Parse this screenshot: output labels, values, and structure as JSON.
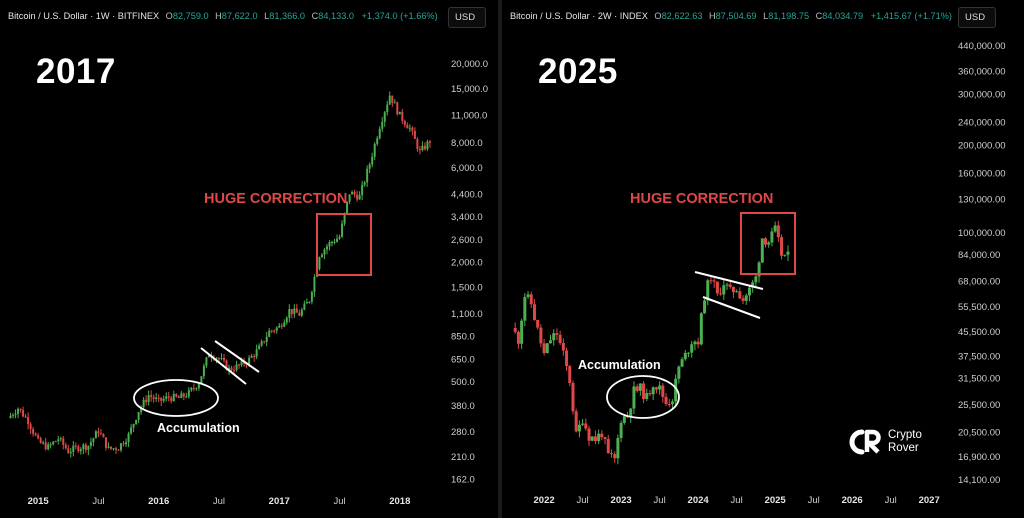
{
  "left": {
    "header": {
      "symbol": "Bitcoin / U.S. Dollar · 1W · BITFINEX",
      "o_label": "O",
      "o": "82,759.0",
      "h_label": "H",
      "h": "87,622.0",
      "l_label": "L",
      "l": "81,366.0",
      "c_label": "C",
      "c": "84,133.0",
      "change": "+1,374.0 (+1.66%)"
    },
    "currency_button": "USD",
    "big_year": "2017",
    "correction_label": "HUGE CORRECTION",
    "accumulation_label": "Accumulation"
  },
  "right": {
    "header": {
      "symbol": "Bitcoin / U.S. Dollar · 2W · INDEX",
      "o_label": "O",
      "o": "82,622.63",
      "h_label": "H",
      "h": "87,504.69",
      "l_label": "L",
      "l": "81,198.75",
      "c_label": "C",
      "c": "84,034.79",
      "change": "+1,415.67 (+1.71%)"
    },
    "currency_button": "USD",
    "big_year": "2025",
    "correction_label": "HUGE CORRECTION",
    "accumulation_label": "Accumulation",
    "logo_text_line1": "Crypto",
    "logo_text_line2": "Rover"
  },
  "colors": {
    "up": "#4caf50",
    "down": "#e04848",
    "box": "#e04848",
    "annotation": "#ffffff"
  },
  "chart_data": [
    {
      "type": "candlestick",
      "title": "Bitcoin / U.S. Dollar · 1W · BITFINEX",
      "x_ticks": [
        "2015",
        "Jul",
        "2016",
        "Jul",
        "2017",
        "Jul",
        "2018"
      ],
      "y_ticks": [
        "20,000.0",
        "15,000.0",
        "11,000.0",
        "8,000.0",
        "6,000.0",
        "4,400.0",
        "3,400.0",
        "2,600.0",
        "2,000.0",
        "1,500.0",
        "1,100.0",
        "850.0",
        "650.0",
        "500.0",
        "380.0",
        "280.0",
        "210.0",
        "162.0"
      ],
      "y_scale": "log",
      "x_range": [
        "2014-10",
        "2018-05"
      ],
      "y_range": [
        150,
        23000
      ],
      "series": [
        {
          "points": [
            [
              "2014-10",
              330
            ],
            [
              "2014-11",
              370
            ],
            [
              "2014-12",
              320
            ],
            [
              "2015-01",
              250
            ],
            [
              "2015-02",
              235
            ],
            [
              "2015-03",
              260
            ],
            [
              "2015-04",
              225
            ],
            [
              "2015-05",
              235
            ],
            [
              "2015-06",
              240
            ],
            [
              "2015-07",
              285
            ],
            [
              "2015-08",
              230
            ],
            [
              "2015-09",
              235
            ],
            [
              "2015-10",
              270
            ],
            [
              "2015-11",
              360
            ],
            [
              "2015-12",
              430
            ],
            [
              "2016-01",
              400
            ],
            [
              "2016-02",
              420
            ],
            [
              "2016-03",
              415
            ],
            [
              "2016-04",
              440
            ],
            [
              "2016-05",
              500
            ],
            [
              "2016-06",
              700
            ],
            [
              "2016-07",
              660
            ],
            [
              "2016-08",
              580
            ],
            [
              "2016-09",
              605
            ],
            [
              "2016-10",
              650
            ],
            [
              "2016-11",
              740
            ],
            [
              "2016-12",
              900
            ],
            [
              "2017-01",
              950
            ],
            [
              "2017-02",
              1150
            ],
            [
              "2017-03",
              1100
            ],
            [
              "2017-04",
              1300
            ],
            [
              "2017-05",
              2200
            ],
            [
              "2017-06",
              2500
            ],
            [
              "2017-07",
              2700
            ],
            [
              "2017-08",
              4500
            ],
            [
              "2017-09",
              4300
            ],
            [
              "2017-10",
              6300
            ],
            [
              "2017-11",
              9800
            ],
            [
              "2017-12",
              14000
            ],
            [
              "2018-01",
              11000
            ],
            [
              "2018-02",
              9500
            ],
            [
              "2018-03",
              7200
            ],
            [
              "2018-04",
              8200
            ]
          ]
        }
      ],
      "annotations": [
        "HUGE CORRECTION",
        "Accumulation"
      ]
    },
    {
      "type": "candlestick",
      "title": "Bitcoin / U.S. Dollar · 2W · INDEX",
      "x_ticks": [
        "2022",
        "Jul",
        "2023",
        "Jul",
        "2024",
        "Jul",
        "2025",
        "Jul",
        "2026",
        "Jul",
        "2027"
      ],
      "y_ticks": [
        "440,000.00",
        "360,000.00",
        "300,000.00",
        "240,000.00",
        "200,000.00",
        "160,000.00",
        "130,000.00",
        "100,000.00",
        "84,000.00",
        "68,000.00",
        "55,500.00",
        "45,500.00",
        "37,500.00",
        "31,500.00",
        "25,500.00",
        "20,500.00",
        "16,900.00",
        "14,100.00"
      ],
      "y_scale": "log",
      "x_range": [
        "2021-08",
        "2027-03"
      ],
      "y_range": [
        13000,
        520000
      ],
      "series": [
        {
          "points": [
            [
              "2021-08",
              47000
            ],
            [
              "2021-09",
              43000
            ],
            [
              "2021-10",
              61000
            ],
            [
              "2021-11",
              57000
            ],
            [
              "2021-12",
              46000
            ],
            [
              "2022-01",
              38000
            ],
            [
              "2022-02",
              43000
            ],
            [
              "2022-03",
              45000
            ],
            [
              "2022-04",
              38000
            ],
            [
              "2022-05",
              31000
            ],
            [
              "2022-06",
              20000
            ],
            [
              "2022-07",
              23000
            ],
            [
              "2022-08",
              20000
            ],
            [
              "2022-09",
              19500
            ],
            [
              "2022-10",
              20500
            ],
            [
              "2022-11",
              17000
            ],
            [
              "2022-12",
              16500
            ],
            [
              "2023-01",
              23000
            ],
            [
              "2023-02",
              23500
            ],
            [
              "2023-03",
              28500
            ],
            [
              "2023-04",
              29000
            ],
            [
              "2023-05",
              27000
            ],
            [
              "2023-06",
              30500
            ],
            [
              "2023-07",
              29000
            ],
            [
              "2023-08",
              26000
            ],
            [
              "2023-09",
              27000
            ],
            [
              "2023-10",
              34500
            ],
            [
              "2023-11",
              37700
            ],
            [
              "2023-12",
              42500
            ],
            [
              "2024-01",
              42500
            ],
            [
              "2024-02",
              61000
            ],
            [
              "2024-03",
              71000
            ],
            [
              "2024-04",
              60500
            ],
            [
              "2024-05",
              67500
            ],
            [
              "2024-06",
              62500
            ],
            [
              "2024-07",
              64500
            ],
            [
              "2024-08",
              59000
            ],
            [
              "2024-09",
              63500
            ],
            [
              "2024-10",
              70000
            ],
            [
              "2024-11",
              96500
            ],
            [
              "2024-12",
              93500
            ],
            [
              "2025-01",
              102000
            ],
            [
              "2025-02",
              84500
            ],
            [
              "2025-03",
              82500
            ]
          ]
        }
      ],
      "annotations": [
        "HUGE CORRECTION",
        "Accumulation"
      ]
    }
  ]
}
